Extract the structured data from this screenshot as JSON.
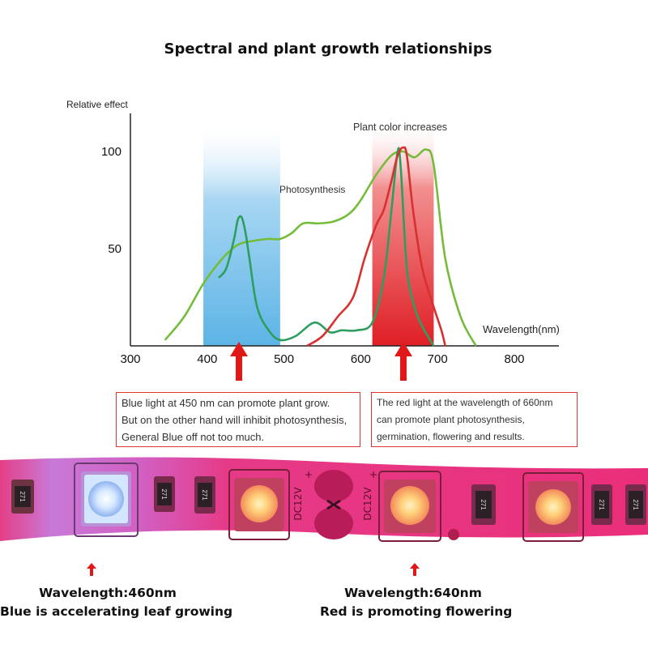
{
  "title": "Spectral and plant growth relationships",
  "chart_data": {
    "type": "line",
    "title": "Spectral and plant growth relationships",
    "xlabel": "Wavelength(nm)",
    "ylabel": "Relative effect",
    "xlim": [
      300,
      850
    ],
    "ylim": [
      0,
      130
    ],
    "x_ticks": [
      "300",
      "400",
      "500",
      "600",
      "700",
      "800"
    ],
    "y_ticks": [
      "50",
      "100"
    ],
    "bands": [
      {
        "name": "blue",
        "from": 395,
        "to": 495,
        "color": "#6ab8e8"
      },
      {
        "name": "red",
        "from": 615,
        "to": 695,
        "color": "#e2262a"
      }
    ],
    "annotations": [
      "Photosynthesis",
      "Plant color increases"
    ],
    "series": [
      {
        "color": "#74bc3a",
        "x": [
          345,
          370,
          395,
          420,
          440,
          460,
          480,
          495,
          510,
          525,
          545,
          565,
          585,
          600,
          620,
          640,
          655,
          670,
          685,
          695,
          710,
          730,
          750
        ],
        "values": [
          3,
          15,
          32,
          45,
          52,
          54,
          55,
          55,
          58,
          63,
          63,
          64,
          68,
          75,
          88,
          98,
          100,
          97,
          101,
          93,
          45,
          15,
          0
        ]
      },
      {
        "color": "#2e9e5e",
        "x": [
          415,
          425,
          435,
          440,
          445,
          450,
          455,
          465,
          480,
          495,
          515,
          540,
          560,
          575,
          595,
          615,
          630,
          640,
          648,
          652,
          660,
          670,
          680,
          695
        ],
        "values": [
          35,
          40,
          55,
          65,
          66,
          58,
          45,
          20,
          8,
          3,
          5,
          12,
          7,
          8,
          8,
          12,
          35,
          70,
          100,
          92,
          40,
          20,
          10,
          0
        ]
      },
      {
        "color": "#d8302f",
        "x": [
          530,
          550,
          570,
          590,
          605,
          620,
          630,
          640,
          648,
          655,
          660,
          668,
          680,
          695,
          705,
          710
        ],
        "values": [
          0,
          5,
          15,
          25,
          45,
          62,
          70,
          85,
          98,
          102,
          98,
          70,
          40,
          20,
          8,
          0
        ]
      }
    ]
  },
  "notes": {
    "blue": [
      "Blue light at 450 nm can promote plant grow.",
      "But on the other hand will inhibit photosynthesis,",
      "General Blue off not too much."
    ],
    "red": [
      "The red light at the wavelength of 660nm",
      "can promote plant photosynthesis,",
      "germination, flowering and results."
    ]
  },
  "strip": {
    "voltage_label": "DC12V",
    "resistor_code": "271",
    "plus_sign": "+"
  },
  "captions": {
    "blue_line1": "Wavelength:460nm",
    "blue_line2": "Blue is accelerating leaf growing",
    "red_line1": "Wavelength:640nm",
    "red_line2": "Red is promoting flowering"
  },
  "colors": {
    "arrow": "#e01818",
    "strip": "#e0308a"
  }
}
